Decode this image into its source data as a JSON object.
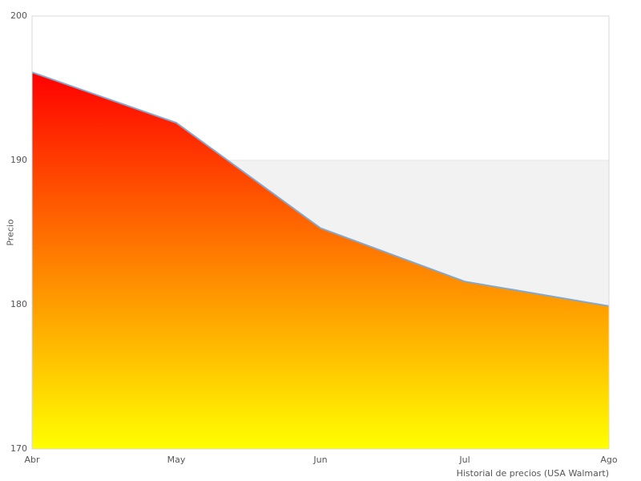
{
  "colors": {
    "area_top": "#ff0000",
    "area_bottom": "#ffff00",
    "line": "#7fa8d3",
    "band_fill": "#f2f2f2",
    "band_edge": "#e6e6e6",
    "plot_border": "#d8d8d8",
    "text": "#555555",
    "background": "#ffffff"
  },
  "chart_data": {
    "type": "area",
    "title": "",
    "caption": "Historial de precios (USA Walmart)",
    "ylabel": "Precio",
    "xlabel": "",
    "categories": [
      "Abr",
      "May",
      "Jun",
      "Jul",
      "Ago"
    ],
    "values": [
      196.1,
      192.6,
      185.3,
      181.6,
      179.9
    ],
    "series_name": "Precio",
    "ylim": [
      170,
      200
    ],
    "yticks": [
      170,
      180,
      190,
      200
    ],
    "plot_band": {
      "from": 170,
      "to": 190
    },
    "grid": false,
    "legend_position": "none",
    "area_gradient": [
      "#ff0000",
      "#ffff00"
    ],
    "line_width": 2
  }
}
